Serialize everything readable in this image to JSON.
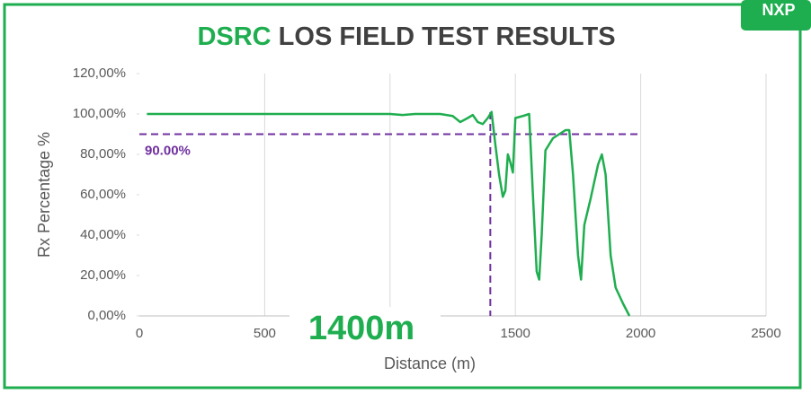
{
  "chart_data": {
    "type": "line",
    "badge": "NXP",
    "title_highlight": "DSRC",
    "title": "LOS FIELD TEST RESULTS",
    "x_label": "Distance (m)",
    "y_label": "Rx Percentage %",
    "x": [
      30,
      500,
      1000,
      1050,
      1100,
      1200,
      1250,
      1280,
      1310,
      1330,
      1350,
      1370,
      1390,
      1405,
      1420,
      1435,
      1450,
      1460,
      1470,
      1480,
      1490,
      1500,
      1530,
      1555,
      1570,
      1585,
      1595,
      1605,
      1620,
      1650,
      1700,
      1715,
      1730,
      1750,
      1762,
      1775,
      1800,
      1830,
      1845,
      1860,
      1880,
      1900,
      1930,
      1955
    ],
    "series": [
      {
        "color": "#1fae4f",
        "values": [
          100,
          100,
          100,
          99.5,
          100,
          100,
          99,
          96,
          98,
          99.5,
          96,
          95,
          98,
          101,
          85,
          70,
          59,
          62,
          80,
          76,
          71,
          98,
          99,
          100,
          60,
          22,
          18,
          40,
          82,
          88,
          92,
          92,
          70,
          30,
          18,
          45,
          58,
          75,
          80,
          70,
          30,
          14,
          6,
          0
        ]
      }
    ],
    "xlim": [
      0,
      2500
    ],
    "xticks": [
      0,
      500,
      1000,
      1500,
      2000,
      2500
    ],
    "ylim": [
      0,
      120
    ],
    "yticks": [
      {
        "value": 0,
        "label": "0,00%"
      },
      {
        "value": 20,
        "label": "20,00%"
      },
      {
        "value": 40,
        "label": "40,00%"
      },
      {
        "value": 60,
        "label": "60,00%"
      },
      {
        "value": 80,
        "label": "80,00%"
      },
      {
        "value": 100,
        "label": "100,00%"
      },
      {
        "value": 120,
        "label": "120,00%"
      }
    ],
    "hline": {
      "value": 90,
      "label": "90.00%",
      "x_end": 2000,
      "color": "#7030a0"
    },
    "vline": {
      "value": 1400,
      "label": "1400m",
      "color": "#7030a0"
    },
    "grid": "x"
  }
}
